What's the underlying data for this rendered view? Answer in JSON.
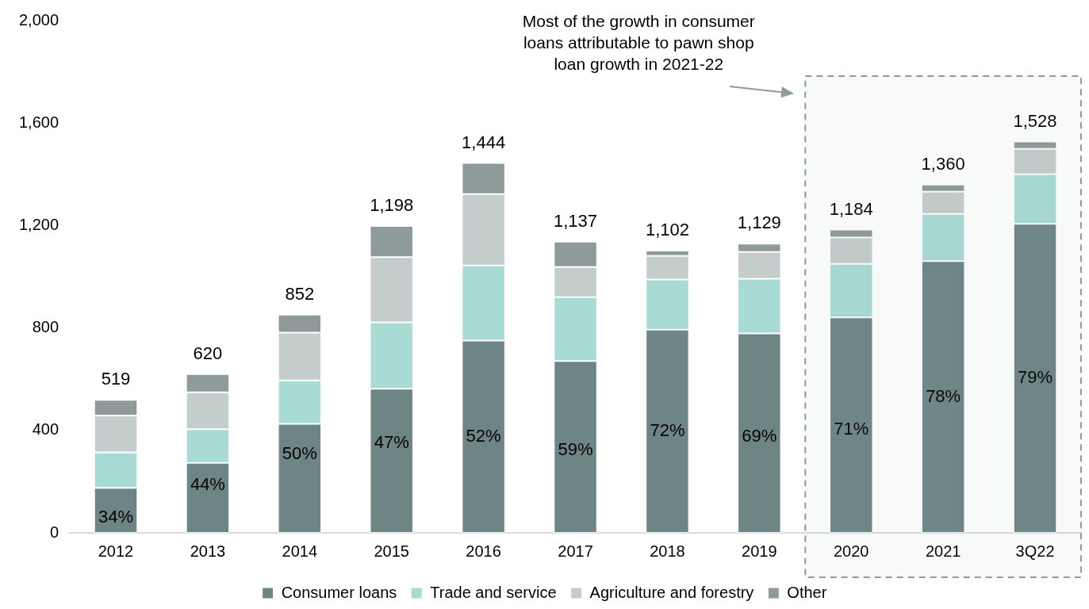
{
  "chart_data": {
    "type": "bar",
    "stacked": true,
    "categories": [
      "2012",
      "2013",
      "2014",
      "2015",
      "2016",
      "2017",
      "2018",
      "2019",
      "2020",
      "2021",
      "3Q22"
    ],
    "series": [
      {
        "name": "Consumer loans",
        "color": "#6e8585",
        "values": [
          176,
          273,
          426,
          563,
          751,
          671,
          793,
          779,
          841,
          1061,
          1207
        ]
      },
      {
        "name": "Trade and service",
        "color": "#a8dbd4",
        "values": [
          138,
          132,
          169,
          259,
          293,
          249,
          196,
          213,
          209,
          184,
          193
        ]
      },
      {
        "name": "Agriculture and forestry",
        "color": "#c5cccc",
        "values": [
          144,
          144,
          187,
          255,
          279,
          118,
          92,
          105,
          103,
          87,
          99
        ]
      },
      {
        "name": "Other",
        "color": "#8f9b9a",
        "values": [
          61,
          71,
          70,
          121,
          121,
          99,
          21,
          32,
          31,
          28,
          29
        ]
      }
    ],
    "totals": [
      "519",
      "620",
      "852",
      "1,198",
      "1,444",
      "1,137",
      "1,102",
      "1,129",
      "1,184",
      "1,360",
      "1,528"
    ],
    "ylim": [
      0,
      2000
    ],
    "yticks": [
      0,
      400,
      800,
      {
        "value": 1200,
        "label": "1,200"
      },
      {
        "value": 1600,
        "label": "1,600"
      },
      {
        "value": 2000,
        "label": "2,000"
      }
    ],
    "grid": false,
    "legend": "bottom",
    "bands": [
      {
        "axis": "x",
        "from": "2020",
        "to": "3Q22",
        "color": "#8f9b9a"
      }
    ],
    "annotations": [
      "Most of the growth in consumer loans attributable to pawn shop loan growth in 2021-22",
      "34%",
      "44%",
      "50%",
      "47%",
      "52%",
      "59%",
      "72%",
      "69%",
      "71%",
      "78%",
      "79%"
    ]
  }
}
